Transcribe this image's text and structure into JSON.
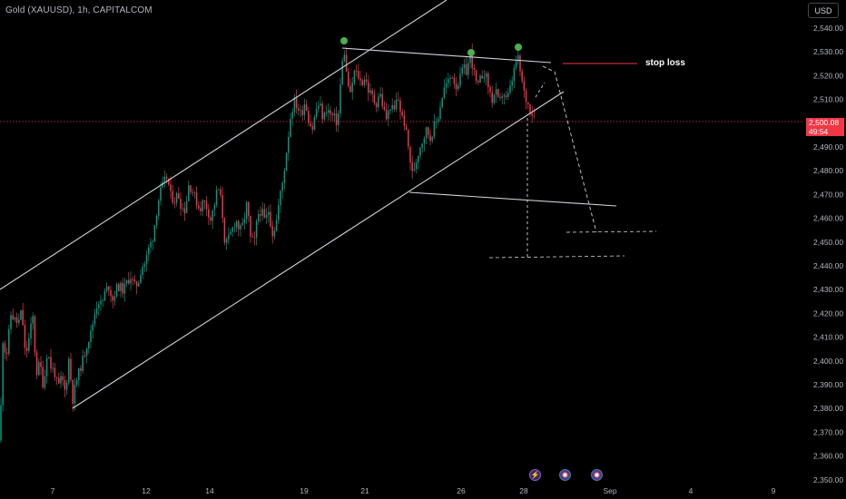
{
  "header": {
    "symbol_title": "Gold (XAUUSD), 1h, CAPITALCOM",
    "currency_button": "USD"
  },
  "price_badge": {
    "price": "2,500.08",
    "countdown": "49:54",
    "color": "#f23645"
  },
  "annotations": {
    "stop_loss_label": "stop loss"
  },
  "events": [
    {
      "icon": "lightning-icon"
    },
    {
      "icon": "us-flag-icon"
    },
    {
      "icon": "us-flag-icon"
    }
  ],
  "chart_data": {
    "type": "candlestick",
    "title": "Gold (XAUUSD), 1h, CAPITALCOM",
    "y_ticks": [
      "2,540.00",
      "2,530.00",
      "2,520.00",
      "2,510.00",
      "2,500.00",
      "2,490.00",
      "2,480.00",
      "2,470.00",
      "2,460.00",
      "2,450.00",
      "2,440.00",
      "2,430.00",
      "2,420.00",
      "2,410.00",
      "2,400.00",
      "2,390.00",
      "2,380.00",
      "2,370.00",
      "2,360.00",
      "2,350.00"
    ],
    "x_ticks": [
      "7",
      "12",
      "14",
      "19",
      "21",
      "26",
      "28",
      "Sep",
      "4",
      "9"
    ],
    "ylim": [
      2350,
      2540
    ],
    "current_price": 2500.08,
    "colors": {
      "up": "#089981",
      "down": "#f23645",
      "drawing": "#d1d4dc",
      "stop": "#f23645",
      "marker": "#4caf50"
    },
    "price_path": [
      [
        0,
        2365
      ],
      [
        3,
        2408
      ],
      [
        7,
        2400
      ],
      [
        12,
        2418
      ],
      [
        16,
        2416
      ],
      [
        20,
        2414
      ],
      [
        24,
        2420
      ],
      [
        28,
        2400
      ],
      [
        33,
        2410
      ],
      [
        36,
        2418
      ],
      [
        40,
        2393
      ],
      [
        44,
        2398
      ],
      [
        48,
        2387
      ],
      [
        52,
        2403
      ],
      [
        56,
        2396
      ],
      [
        60,
        2394
      ],
      [
        64,
        2387
      ],
      [
        68,
        2392
      ],
      [
        72,
        2385
      ],
      [
        76,
        2400
      ],
      [
        80,
        2382
      ],
      [
        84,
        2390
      ],
      [
        88,
        2395
      ],
      [
        92,
        2400
      ],
      [
        96,
        2406
      ],
      [
        100,
        2410
      ],
      [
        104,
        2418
      ],
      [
        108,
        2424
      ],
      [
        112,
        2422
      ],
      [
        116,
        2428
      ],
      [
        120,
        2430
      ],
      [
        124,
        2424
      ],
      [
        128,
        2429
      ],
      [
        132,
        2430
      ],
      [
        136,
        2428
      ],
      [
        140,
        2432
      ],
      [
        144,
        2434
      ],
      [
        148,
        2430
      ],
      [
        152,
        2431
      ],
      [
        156,
        2438
      ],
      [
        160,
        2440
      ],
      [
        164,
        2446
      ],
      [
        168,
        2450
      ],
      [
        172,
        2460
      ],
      [
        176,
        2469
      ],
      [
        180,
        2473
      ],
      [
        184,
        2476
      ],
      [
        188,
        2468
      ],
      [
        192,
        2466
      ],
      [
        196,
        2469
      ],
      [
        200,
        2463
      ],
      [
        204,
        2462
      ],
      [
        208,
        2473
      ],
      [
        212,
        2470
      ],
      [
        216,
        2466
      ],
      [
        220,
        2462
      ],
      [
        224,
        2466
      ],
      [
        228,
        2463
      ],
      [
        232,
        2458
      ],
      [
        236,
        2464
      ],
      [
        240,
        2472
      ],
      [
        244,
        2465
      ],
      [
        248,
        2447
      ],
      [
        252,
        2450
      ],
      [
        256,
        2454
      ],
      [
        260,
        2458
      ],
      [
        264,
        2453
      ],
      [
        268,
        2456
      ],
      [
        272,
        2465
      ],
      [
        276,
        2450
      ],
      [
        280,
        2448
      ],
      [
        284,
        2460
      ],
      [
        288,
        2462
      ],
      [
        292,
        2457
      ],
      [
        296,
        2462
      ],
      [
        300,
        2452
      ],
      [
        304,
        2456
      ],
      [
        308,
        2467
      ],
      [
        312,
        2475
      ],
      [
        316,
        2488
      ],
      [
        320,
        2501
      ],
      [
        324,
        2508
      ],
      [
        328,
        2505
      ],
      [
        332,
        2502
      ],
      [
        336,
        2508
      ],
      [
        340,
        2500
      ],
      [
        344,
        2496
      ],
      [
        348,
        2504
      ],
      [
        352,
        2507
      ],
      [
        356,
        2500
      ],
      [
        360,
        2505
      ],
      [
        364,
        2502
      ],
      [
        368,
        2501
      ],
      [
        372,
        2498
      ],
      [
        376,
        2520
      ],
      [
        379,
        2530
      ],
      [
        382,
        2518
      ],
      [
        386,
        2510
      ],
      [
        390,
        2520
      ],
      [
        394,
        2519
      ],
      [
        398,
        2515
      ],
      [
        402,
        2518
      ],
      [
        406,
        2512
      ],
      [
        410,
        2510
      ],
      [
        414,
        2506
      ],
      [
        418,
        2512
      ],
      [
        422,
        2505
      ],
      [
        426,
        2500
      ],
      [
        430,
        2506
      ],
      [
        434,
        2503
      ],
      [
        438,
        2510
      ],
      [
        442,
        2502
      ],
      [
        446,
        2498
      ],
      [
        450,
        2488
      ],
      [
        454,
        2477
      ],
      [
        458,
        2482
      ],
      [
        462,
        2488
      ],
      [
        466,
        2492
      ],
      [
        470,
        2496
      ],
      [
        474,
        2492
      ],
      [
        478,
        2497
      ],
      [
        482,
        2500
      ],
      [
        486,
        2508
      ],
      [
        490,
        2514
      ],
      [
        494,
        2516
      ],
      [
        498,
        2519
      ],
      [
        502,
        2514
      ],
      [
        506,
        2516
      ],
      [
        510,
        2522
      ],
      [
        514,
        2520
      ],
      [
        518,
        2528
      ],
      [
        522,
        2520
      ],
      [
        526,
        2513
      ],
      [
        530,
        2518
      ],
      [
        534,
        2520
      ],
      [
        538,
        2514
      ],
      [
        542,
        2508
      ],
      [
        546,
        2512
      ],
      [
        550,
        2506
      ],
      [
        554,
        2512
      ],
      [
        558,
        2508
      ],
      [
        562,
        2513
      ],
      [
        566,
        2520
      ],
      [
        570,
        2527
      ],
      [
        574,
        2518
      ],
      [
        578,
        2510
      ],
      [
        582,
        2506
      ],
      [
        586,
        2503
      ],
      [
        590,
        2501
      ]
    ]
  }
}
